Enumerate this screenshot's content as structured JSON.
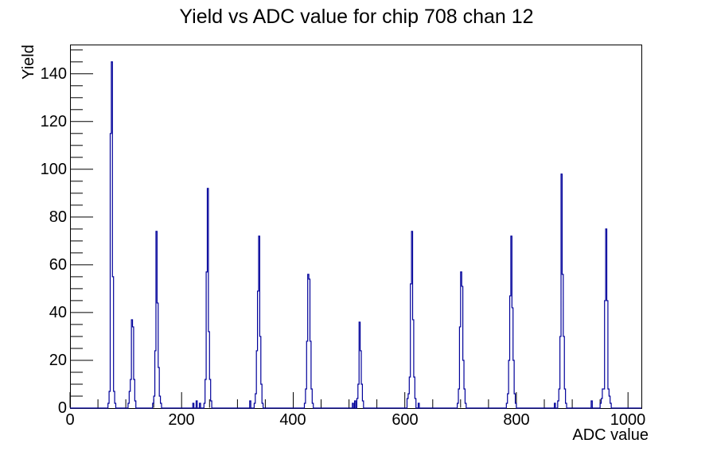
{
  "chart_data": {
    "type": "bar",
    "title": "Yield vs ADC value for chip 708 chan 12",
    "xlabel": "ADC value",
    "ylabel": "Yield",
    "xlim": [
      0,
      1024
    ],
    "ylim": [
      0,
      152.25
    ],
    "x_major_step": 200,
    "x_minor_step": 50,
    "y_major_step": 20,
    "y_minor_step": 5,
    "x_major_labels": [
      "0",
      "200",
      "400",
      "600",
      "800",
      "1000"
    ],
    "y_major_labels": [
      "0",
      "20",
      "40",
      "60",
      "80",
      "100",
      "120",
      "140"
    ],
    "grid": "off",
    "legend": "none",
    "line_color": "#00009a",
    "frame_color": "#000000",
    "bin_width": 2,
    "bins": [
      [
        68,
        2
      ],
      [
        70,
        7
      ],
      [
        72,
        115
      ],
      [
        74,
        145
      ],
      [
        76,
        55
      ],
      [
        78,
        7
      ],
      [
        80,
        2
      ],
      [
        104,
        2
      ],
      [
        106,
        7
      ],
      [
        108,
        12
      ],
      [
        110,
        37
      ],
      [
        112,
        34
      ],
      [
        114,
        12
      ],
      [
        116,
        3
      ],
      [
        148,
        2
      ],
      [
        150,
        5
      ],
      [
        152,
        24
      ],
      [
        154,
        74
      ],
      [
        156,
        44
      ],
      [
        158,
        17
      ],
      [
        160,
        5
      ],
      [
        162,
        2
      ],
      [
        220,
        2
      ],
      [
        226,
        3
      ],
      [
        232,
        2
      ],
      [
        240,
        2
      ],
      [
        242,
        12
      ],
      [
        244,
        57
      ],
      [
        246,
        92
      ],
      [
        248,
        32
      ],
      [
        250,
        12
      ],
      [
        252,
        3
      ],
      [
        322,
        3
      ],
      [
        330,
        2
      ],
      [
        332,
        6
      ],
      [
        334,
        24
      ],
      [
        336,
        49
      ],
      [
        338,
        72
      ],
      [
        340,
        30
      ],
      [
        342,
        10
      ],
      [
        344,
        2
      ],
      [
        420,
        2
      ],
      [
        422,
        8
      ],
      [
        424,
        28
      ],
      [
        426,
        56
      ],
      [
        428,
        54
      ],
      [
        430,
        28
      ],
      [
        432,
        8
      ],
      [
        434,
        2
      ],
      [
        506,
        2
      ],
      [
        510,
        3
      ],
      [
        514,
        4
      ],
      [
        516,
        10
      ],
      [
        518,
        36
      ],
      [
        520,
        24
      ],
      [
        522,
        10
      ],
      [
        524,
        3
      ],
      [
        604,
        4
      ],
      [
        606,
        6
      ],
      [
        608,
        13
      ],
      [
        610,
        52
      ],
      [
        612,
        74
      ],
      [
        614,
        37
      ],
      [
        616,
        13
      ],
      [
        618,
        4
      ],
      [
        624,
        2
      ],
      [
        694,
        2
      ],
      [
        696,
        8
      ],
      [
        698,
        34
      ],
      [
        700,
        57
      ],
      [
        702,
        51
      ],
      [
        704,
        20
      ],
      [
        706,
        8
      ],
      [
        708,
        2
      ],
      [
        782,
        2
      ],
      [
        784,
        6
      ],
      [
        786,
        20
      ],
      [
        788,
        47
      ],
      [
        790,
        72
      ],
      [
        792,
        42
      ],
      [
        794,
        20
      ],
      [
        796,
        6
      ],
      [
        798,
        2
      ],
      [
        868,
        2
      ],
      [
        874,
        3
      ],
      [
        876,
        8
      ],
      [
        878,
        30
      ],
      [
        880,
        98
      ],
      [
        882,
        56
      ],
      [
        884,
        30
      ],
      [
        886,
        8
      ],
      [
        888,
        2
      ],
      [
        934,
        3
      ],
      [
        950,
        2
      ],
      [
        952,
        4
      ],
      [
        954,
        8
      ],
      [
        956,
        8
      ],
      [
        958,
        45
      ],
      [
        960,
        75
      ],
      [
        962,
        45
      ],
      [
        964,
        8
      ],
      [
        966,
        5
      ],
      [
        968,
        2
      ]
    ]
  }
}
